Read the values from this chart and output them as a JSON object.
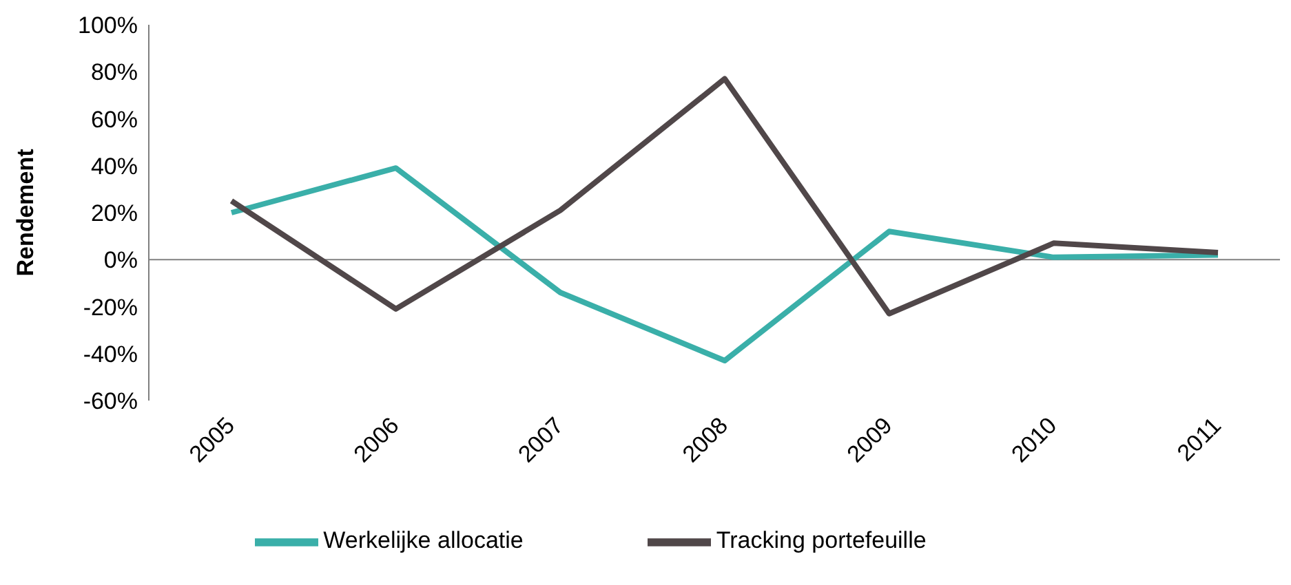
{
  "chart_data": {
    "type": "line",
    "ylabel": "Rendement",
    "categories": [
      "2005",
      "2006",
      "2007",
      "2008",
      "2009",
      "2010",
      "2011"
    ],
    "series": [
      {
        "name": "Werkelijke allocatie",
        "color": "#3aafa9",
        "values": [
          20,
          39,
          -14,
          -43,
          12,
          1,
          2
        ]
      },
      {
        "name": "Tracking portefeuille",
        "color": "#504749",
        "values": [
          25,
          -21,
          21,
          77,
          -23,
          7,
          3
        ]
      }
    ],
    "ylim": [
      -60,
      100
    ],
    "yticks": [
      {
        "value": -60,
        "label": "-60%"
      },
      {
        "value": -40,
        "label": "-40%"
      },
      {
        "value": -20,
        "label": "-20%"
      },
      {
        "value": 0,
        "label": "0%"
      },
      {
        "value": 20,
        "label": "20%"
      },
      {
        "value": 40,
        "label": "40%"
      },
      {
        "value": 60,
        "label": "60%"
      },
      {
        "value": 80,
        "label": "80%"
      },
      {
        "value": 100,
        "label": "100%"
      }
    ],
    "ref_lines": [
      {
        "axis": "y",
        "value": 0,
        "color": "#808080"
      }
    ],
    "grid": false,
    "legend": "bottom",
    "marker": "none",
    "line_style": "solid"
  }
}
